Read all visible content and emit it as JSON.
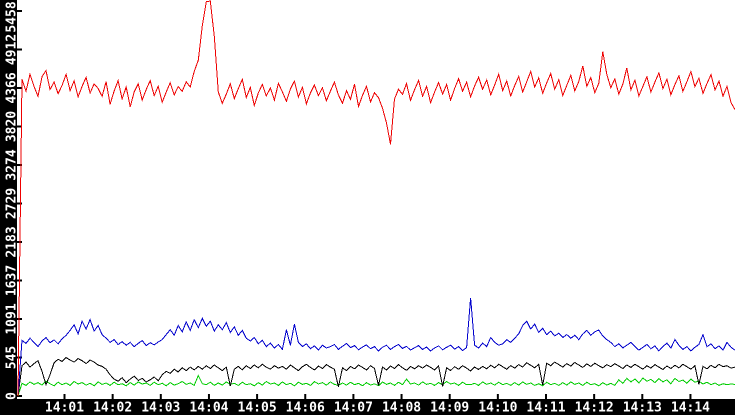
{
  "chart_data": {
    "type": "line",
    "title": "",
    "xlabel": "",
    "ylabel": "",
    "grid": false,
    "legend": "none",
    "plot_bg": "#ffffff",
    "axis_bar_color": "#000000",
    "axis_text_color": "#ffffff",
    "tick_color": "#000000",
    "x_axis": {
      "tick_labels": [
        "14:01",
        "14:02",
        "14:03",
        "14:04",
        "14:05",
        "14:06",
        "14:07",
        "14:08",
        "14:09",
        "14:10",
        "14:11",
        "14:12",
        "14:13",
        "14:14"
      ],
      "minutes_per_division": 1
    },
    "y_axis": {
      "min": 0,
      "max": 5458,
      "tick_labels": [
        "0",
        "545",
        "1091",
        "1637",
        "2183",
        "2729",
        "3274",
        "3820",
        "4366",
        "4912",
        "5458"
      ]
    },
    "series": [
      {
        "name": "red-series",
        "color": "#ee0000",
        "values": [
          0,
          4493,
          4321,
          4562,
          4390,
          4248,
          4527,
          4612,
          4345,
          4450,
          4286,
          4404,
          4561,
          4329,
          4467,
          4240,
          4390,
          4518,
          4296,
          4425,
          4361,
          4249,
          4456,
          4137,
          4322,
          4470,
          4213,
          4380,
          4100,
          4311,
          4428,
          4196,
          4345,
          4472,
          4258,
          4391,
          4166,
          4308,
          4441,
          4270,
          4385,
          4320,
          4455,
          4380,
          4600,
          4760,
          5250,
          5590,
          5620,
          5100,
          4310,
          4150,
          4280,
          4427,
          4215,
          4358,
          4490,
          4232,
          4375,
          4120,
          4296,
          4418,
          4254,
          4367,
          4195,
          4433,
          4311,
          4178,
          4352,
          4464,
          4239,
          4376,
          4142,
          4295,
          4410,
          4258,
          4370,
          4185,
          4322,
          4450,
          4268,
          4150,
          4330,
          4205,
          4420,
          4105,
          4262,
          4390,
          4170,
          4300,
          4230,
          4080,
          3870,
          3570,
          4210,
          4350,
          4275,
          4430,
          4190,
          4345,
          4472,
          4250,
          4388,
          4160,
          4310,
          4445,
          4280,
          4415,
          4195,
          4360,
          4500,
          4320,
          4450,
          4240,
          4395,
          4520,
          4350,
          4480,
          4270,
          4410,
          4560,
          4330,
          4465,
          4255,
          4400,
          4530,
          4310,
          4455,
          4600,
          4380,
          4510,
          4290,
          4440,
          4570,
          4350,
          4485,
          4260,
          4405,
          4545,
          4325,
          4460,
          4680,
          4390,
          4515,
          4300,
          4435,
          4880,
          4560,
          4370,
          4495,
          4280,
          4420,
          4650,
          4340,
          4475,
          4255,
          4390,
          4525,
          4310,
          4450,
          4580,
          4360,
          4490,
          4270,
          4415,
          4540,
          4320,
          4455,
          4600,
          4385,
          4505,
          4290,
          4430,
          4555,
          4340,
          4465,
          4250,
          4390,
          4160,
          4060
        ]
      },
      {
        "name": "blue-series",
        "color": "#0000cc",
        "values": [
          0,
          790,
          745,
          820,
          760,
          700,
          780,
          830,
          755,
          795,
          740,
          810,
          860,
          930,
          1010,
          880,
          1060,
          950,
          1085,
          920,
          1000,
          870,
          820,
          760,
          800,
          730,
          770,
          720,
          760,
          700,
          745,
          785,
          715,
          755,
          725,
          765,
          800,
          870,
          940,
          860,
          1000,
          910,
          1050,
          930,
          1080,
          970,
          1100,
          990,
          1060,
          920,
          1010,
          940,
          1040,
          900,
          980,
          860,
          930,
          820,
          780,
          830,
          740,
          790,
          700,
          750,
          680,
          730,
          660,
          940,
          720,
          1020,
          760,
          700,
          740,
          670,
          710,
          650,
          720,
          680,
          700,
          730,
          660,
          705,
          745,
          685,
          715,
          655,
          695,
          725,
          670,
          700,
          640,
          690,
          720,
          660,
          700,
          730,
          675,
          705,
          650,
          685,
          715,
          660,
          695,
          640,
          680,
          710,
          655,
          690,
          720,
          665,
          700,
          645,
          685,
          1390,
          720,
          680,
          750,
          700,
          830,
          760,
          720,
          740,
          800,
          760,
          820,
          880,
          1000,
          1060,
          950,
          1020,
          900,
          960,
          870,
          920,
          850,
          890,
          830,
          870,
          820,
          860,
          800,
          880,
          930,
          860,
          910,
          935,
          850,
          800,
          760,
          700,
          740,
          680,
          720,
          760,
          700,
          650,
          690,
          730,
          670,
          710,
          640,
          700,
          750,
          680,
          800,
          720,
          660,
          700,
          640,
          690,
          730,
          870,
          700,
          740,
          670,
          710,
          650,
          760,
          690,
          650
        ]
      },
      {
        "name": "black-series",
        "color": "#000000",
        "values": [
          0,
          430,
          480,
          410,
          460,
          500,
          350,
          160,
          300,
          470,
          520,
          490,
          545,
          510,
          480,
          530,
          500,
          460,
          510,
          480,
          440,
          420,
          380,
          300,
          240,
          210,
          260,
          190,
          240,
          280,
          220,
          250,
          200,
          230,
          270,
          215,
          300,
          350,
          320,
          380,
          340,
          400,
          360,
          410,
          370,
          420,
          380,
          430,
          390,
          440,
          400,
          360,
          410,
          140,
          380,
          420,
          370,
          430,
          390,
          440,
          400,
          450,
          410,
          380,
          430,
          395,
          420,
          380,
          440,
          400,
          360,
          415,
          450,
          405,
          370,
          425,
          390,
          445,
          410,
          380,
          130,
          400,
          360,
          420,
          385,
          440,
          405,
          370,
          430,
          390,
          150,
          410,
          370,
          425,
          390,
          445,
          400,
          365,
          420,
          385,
          430,
          395,
          440,
          405,
          370,
          425,
          135,
          400,
          360,
          415,
          380,
          430,
          395,
          355,
          410,
          375,
          420,
          385,
          435,
          400,
          450,
          415,
          380,
          430,
          395,
          445,
          410,
          470,
          435,
          400,
          450,
          155,
          465,
          430,
          480,
          445,
          410,
          460,
          425,
          475,
          440,
          405,
          455,
          420,
          465,
          430,
          400,
          445,
          415,
          460,
          425,
          390,
          440,
          405,
          450,
          415,
          380,
          430,
          395,
          445,
          410,
          375,
          425,
          390,
          435,
          400,
          450,
          415,
          380,
          430,
          165,
          420,
          385,
          435,
          400,
          450,
          415,
          430,
          395,
          410
        ]
      },
      {
        "name": "green-series",
        "color": "#00cc00",
        "values": [
          0,
          180,
          150,
          200,
          165,
          190,
          155,
          210,
          175,
          145,
          195,
          160,
          185,
          150,
          205,
          170,
          190,
          155,
          180,
          145,
          200,
          165,
          185,
          150,
          195,
          160,
          175,
          145,
          190,
          155,
          200,
          170,
          185,
          150,
          195,
          160,
          180,
          145,
          190,
          155,
          175,
          205,
          165,
          185,
          150,
          290,
          175,
          160,
          195,
          150,
          185,
          155,
          200,
          165,
          180,
          150,
          195,
          160,
          175,
          145,
          190,
          155,
          205,
          170,
          185,
          150,
          200,
          160,
          180,
          145,
          195,
          165,
          180,
          150,
          205,
          170,
          190,
          155,
          200,
          165,
          150,
          185,
          155,
          195,
          160,
          180,
          145,
          190,
          155,
          175,
          145,
          200,
          165,
          185,
          150,
          195,
          160,
          240,
          170,
          185,
          155,
          200,
          165,
          180,
          150,
          190,
          160,
          205,
          170,
          185,
          150,
          195,
          160,
          160,
          180,
          150,
          200,
          165,
          185,
          155,
          195,
          160,
          180,
          150,
          190,
          155,
          200,
          165,
          185,
          150,
          175,
          145,
          195,
          160,
          180,
          150,
          190,
          155,
          200,
          165,
          185,
          150,
          195,
          160,
          175,
          145,
          190,
          155,
          180,
          150,
          230,
          180,
          250,
          200,
          240,
          185,
          255,
          210,
          235,
          190,
          245,
          200,
          230,
          175,
          250,
          205,
          225,
          180,
          240,
          195,
          210,
          170,
          195,
          160,
          185,
          150,
          175,
          160,
          170,
          165
        ]
      }
    ]
  }
}
